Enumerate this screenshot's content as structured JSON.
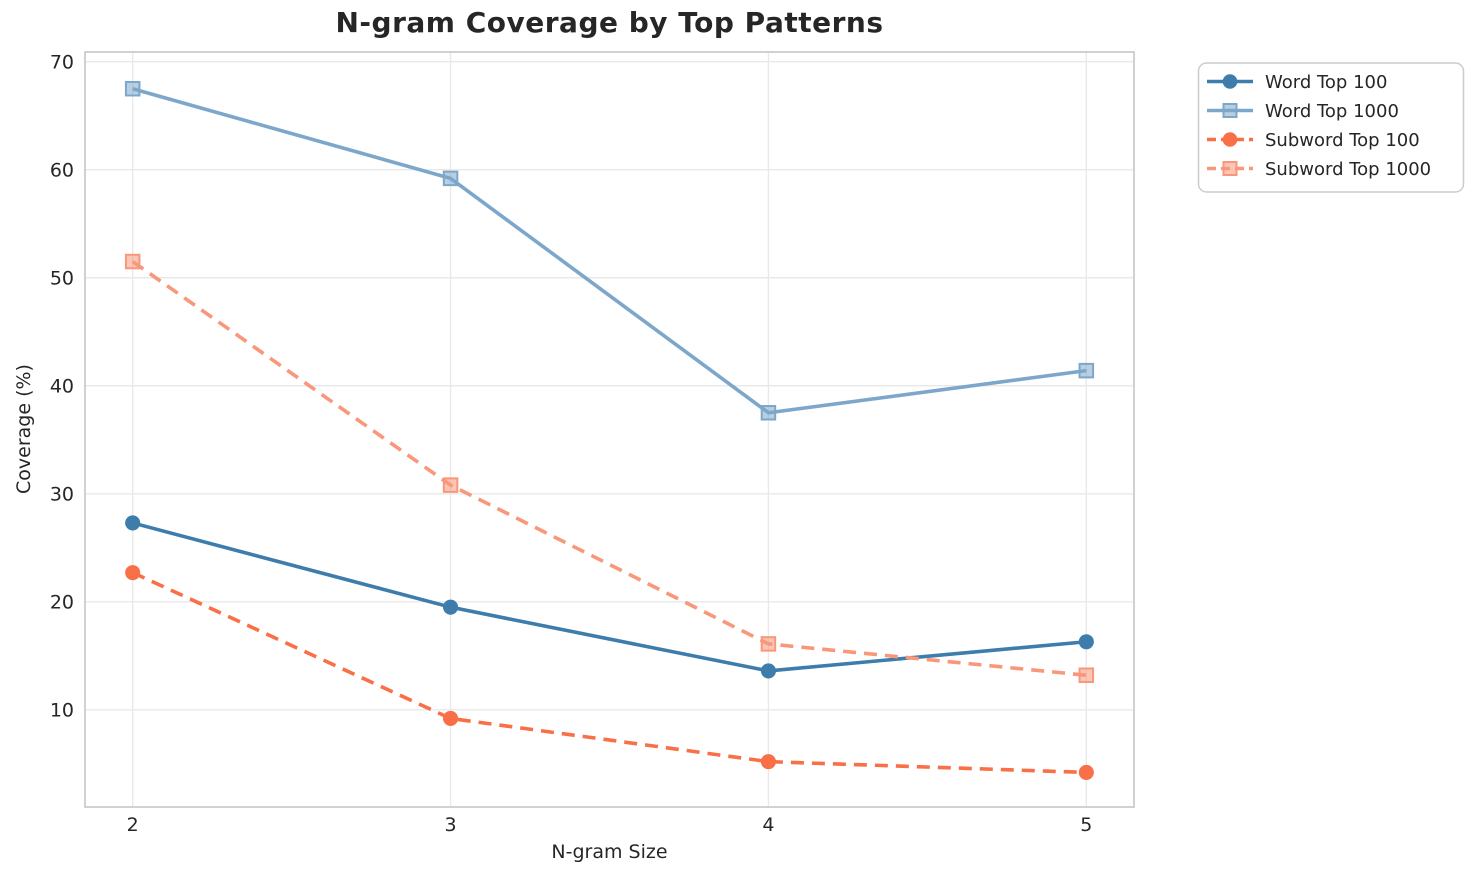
{
  "chart_data": {
    "type": "line",
    "title": "N-gram Coverage by Top Patterns",
    "xlabel": "N-gram Size",
    "ylabel": "Coverage (%)",
    "x": [
      2,
      3,
      4,
      5
    ],
    "xticks": [
      "2",
      "3",
      "4",
      "5"
    ],
    "yticks": [
      10,
      20,
      30,
      40,
      50,
      60,
      70
    ],
    "xlim": [
      1.85,
      5.15
    ],
    "ylim": [
      1.0,
      70.9
    ],
    "grid": true,
    "legend_position": "outside-top-right",
    "series": [
      {
        "name": "Word Top 100",
        "values": [
          27.3,
          19.5,
          13.6,
          16.3
        ],
        "color": "#3E7CAC",
        "marker": "circle",
        "dash": "solid"
      },
      {
        "name": "Word Top 1000",
        "values": [
          67.5,
          59.2,
          37.5,
          41.4
        ],
        "color": "#7DA7CA",
        "marker": "square",
        "dash": "solid"
      },
      {
        "name": "Subword Top 100",
        "values": [
          22.7,
          9.2,
          5.2,
          4.2
        ],
        "color": "#F96F48",
        "marker": "circle",
        "dash": "dashed"
      },
      {
        "name": "Subword Top 1000",
        "values": [
          51.5,
          30.8,
          16.1,
          13.2
        ],
        "color": "#F9977A",
        "marker": "square",
        "dash": "dashed"
      }
    ]
  },
  "colors": {
    "background": "#ffffff",
    "grid": "#e9e9e9",
    "spine": "#cccccc",
    "text": "#262626",
    "legend_border": "#cccccc",
    "legend_background": "#ffffff"
  }
}
